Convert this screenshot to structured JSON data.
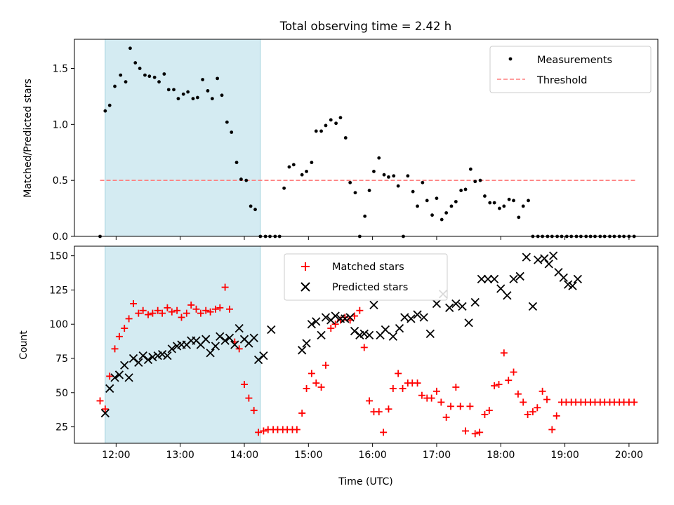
{
  "title": "Total observing time = 2.42 h",
  "colors": {
    "measurement": "#000000",
    "threshold": "#ff7f7f",
    "matched": "#ff0000",
    "predicted": "#000000",
    "shade": "#add8e6"
  },
  "chart_data": [
    {
      "type": "scatter",
      "ylabel": "Matched/Predicted stars",
      "ylim": [
        0,
        1.76
      ],
      "yticks": [
        0.0,
        0.5,
        1.0,
        1.5
      ],
      "ytick_labels": [
        "0.0",
        "0.5",
        "1.0",
        "1.5"
      ],
      "xlim": [
        11.35,
        20.45
      ],
      "xticks": [
        12,
        13,
        14,
        15,
        16,
        17,
        18,
        19,
        20
      ],
      "shaded_region": [
        11.83,
        14.25
      ],
      "threshold": {
        "y": 0.5,
        "x_range": [
          11.75,
          20.1
        ]
      },
      "legend": {
        "position": "top-right",
        "entries": [
          "Measurements",
          "Threshold"
        ]
      },
      "series": [
        {
          "name": "Measurements",
          "x": [
            11.75,
            11.83,
            11.9,
            11.98,
            12.07,
            12.15,
            12.22,
            12.3,
            12.37,
            12.45,
            12.52,
            12.6,
            12.67,
            12.75,
            12.82,
            12.9,
            12.97,
            13.05,
            13.12,
            13.2,
            13.27,
            13.35,
            13.43,
            13.5,
            13.58,
            13.65,
            13.73,
            13.8,
            13.88,
            13.95,
            14.03,
            14.1,
            14.17,
            14.25,
            14.33,
            14.4,
            14.48,
            14.55,
            14.62,
            14.7,
            14.77,
            14.9,
            14.97,
            15.05,
            15.12,
            15.2,
            15.27,
            15.35,
            15.43,
            15.5,
            15.58,
            15.65,
            15.73,
            15.8,
            15.88,
            15.95,
            16.02,
            16.1,
            16.18,
            16.25,
            16.33,
            16.4,
            16.48,
            16.55,
            16.63,
            16.7,
            16.78,
            16.85,
            16.93,
            17.0,
            17.08,
            17.15,
            17.23,
            17.3,
            17.38,
            17.45,
            17.53,
            17.6,
            17.68,
            17.75,
            17.83,
            17.9,
            17.98,
            18.05,
            18.13,
            18.2,
            18.28,
            18.35,
            18.43,
            18.5,
            18.58,
            18.65,
            18.73,
            18.8,
            18.88,
            18.95,
            19.03,
            19.1,
            19.18,
            19.25,
            19.33,
            19.4,
            19.47,
            19.55,
            19.62,
            19.7,
            19.77,
            19.85,
            19.92,
            20.0,
            20.08
          ],
          "y": [
            0.0,
            1.12,
            1.17,
            1.34,
            1.44,
            1.38,
            1.68,
            1.55,
            1.5,
            1.44,
            1.43,
            1.42,
            1.38,
            1.45,
            1.31,
            1.31,
            1.23,
            1.27,
            1.29,
            1.23,
            1.24,
            1.4,
            1.3,
            1.23,
            1.41,
            1.26,
            1.02,
            0.93,
            0.66,
            0.51,
            0.5,
            0.27,
            0.24,
            0.0,
            0.0,
            0.0,
            0.0,
            0.0,
            0.43,
            0.62,
            0.64,
            0.55,
            0.58,
            0.66,
            0.94,
            0.94,
            0.99,
            1.04,
            1.01,
            1.06,
            0.88,
            0.48,
            0.39,
            0.0,
            0.18,
            0.41,
            0.58,
            0.7,
            0.55,
            0.53,
            0.54,
            0.45,
            0.0,
            0.54,
            0.4,
            0.27,
            0.48,
            0.32,
            0.19,
            0.34,
            0.15,
            0.21,
            0.27,
            0.31,
            0.41,
            0.42,
            0.6,
            0.49,
            0.5,
            0.36,
            0.3,
            0.3,
            0.25,
            0.27,
            0.33,
            0.32,
            0.17,
            0.27,
            0.32,
            0.0,
            0.0,
            0.0,
            0.0,
            0.0,
            0.0,
            0.0,
            0.0,
            0.0,
            0.0,
            0.0,
            0.0,
            0.0,
            0.0,
            0.0,
            0.0,
            0.0,
            0.0,
            0.0,
            0.0,
            0.0,
            0.0
          ]
        },
        {
          "name": "Threshold",
          "x": [
            11.75,
            20.1
          ],
          "y": [
            0.5,
            0.5
          ]
        }
      ]
    },
    {
      "type": "scatter",
      "xlabel": "Time (UTC)",
      "ylabel": "Count",
      "ylim": [
        13,
        157
      ],
      "yticks": [
        25,
        50,
        75,
        100,
        125,
        150
      ],
      "ytick_labels": [
        "25",
        "50",
        "75",
        "100",
        "125",
        "150"
      ],
      "xlim": [
        11.35,
        20.45
      ],
      "xticks": [
        12,
        13,
        14,
        15,
        16,
        17,
        18,
        19,
        20
      ],
      "xtick_labels": [
        "12:00",
        "13:00",
        "14:00",
        "15:00",
        "16:00",
        "17:00",
        "18:00",
        "19:00",
        "20:00"
      ],
      "shaded_region": [
        11.83,
        14.25
      ],
      "legend": {
        "position": "top-center",
        "entries": [
          "Matched stars",
          "Predicted stars"
        ]
      },
      "series": [
        {
          "name": "Matched stars",
          "x": [
            11.75,
            11.83,
            11.9,
            11.98,
            12.05,
            12.13,
            12.2,
            12.27,
            12.35,
            12.42,
            12.5,
            12.57,
            12.65,
            12.72,
            12.8,
            12.87,
            12.95,
            13.02,
            13.1,
            13.17,
            13.25,
            13.32,
            13.4,
            13.47,
            13.55,
            13.62,
            13.7,
            13.77,
            13.85,
            13.92,
            14.0,
            14.07,
            14.15,
            14.22,
            14.3,
            14.37,
            14.45,
            14.52,
            14.6,
            14.67,
            14.75,
            14.82,
            14.9,
            14.97,
            15.05,
            15.12,
            15.2,
            15.27,
            15.35,
            15.42,
            15.5,
            15.57,
            15.65,
            15.72,
            15.8,
            15.87,
            15.95,
            16.02,
            16.1,
            16.17,
            16.25,
            16.32,
            16.4,
            16.47,
            16.55,
            16.62,
            16.7,
            16.77,
            16.85,
            16.92,
            17.0,
            17.07,
            17.15,
            17.22,
            17.3,
            17.37,
            17.45,
            17.52,
            17.6,
            17.67,
            17.75,
            17.82,
            17.9,
            17.97,
            18.05,
            18.12,
            18.2,
            18.27,
            18.35,
            18.42,
            18.5,
            18.57,
            18.65,
            18.72,
            18.8,
            18.87,
            18.95,
            19.02,
            19.1,
            19.17,
            19.25,
            19.32,
            19.4,
            19.47,
            19.55,
            19.62,
            19.7,
            19.77,
            19.85,
            19.92,
            20.0,
            20.08
          ],
          "y": [
            44,
            38,
            62,
            82,
            91,
            97,
            104,
            115,
            108,
            110,
            107,
            108,
            110,
            108,
            112,
            109,
            110,
            105,
            108,
            114,
            111,
            108,
            110,
            109,
            111,
            112,
            127,
            111,
            87,
            82,
            56,
            46,
            37,
            21,
            22,
            23,
            23,
            23,
            23,
            23,
            23,
            23,
            35,
            53,
            64,
            57,
            54,
            70,
            97,
            100,
            103,
            105,
            103,
            106,
            110,
            83,
            44,
            36,
            36,
            21,
            38,
            53,
            64,
            53,
            57,
            57,
            57,
            48,
            46,
            46,
            51,
            43,
            32,
            40,
            54,
            40,
            22,
            40,
            20,
            21,
            34,
            37,
            55,
            56,
            79,
            59,
            65,
            49,
            43,
            34,
            36,
            39,
            51,
            45,
            23,
            33,
            43,
            43,
            43,
            43,
            43,
            43,
            43,
            43,
            43,
            43,
            43,
            43,
            43,
            43,
            43,
            43
          ]
        },
        {
          "name": "Predicted stars",
          "x": [
            11.83,
            11.9,
            11.98,
            12.05,
            12.13,
            12.2,
            12.27,
            12.35,
            12.42,
            12.5,
            12.57,
            12.65,
            12.72,
            12.8,
            12.87,
            12.95,
            13.02,
            13.1,
            13.17,
            13.25,
            13.32,
            13.4,
            13.47,
            13.55,
            13.62,
            13.7,
            13.77,
            13.85,
            13.92,
            14.0,
            14.07,
            14.15,
            14.22,
            14.3,
            14.42,
            14.9,
            14.97,
            15.05,
            15.12,
            15.2,
            15.27,
            15.35,
            15.42,
            15.5,
            15.57,
            15.65,
            15.72,
            15.8,
            15.87,
            15.95,
            16.02,
            16.12,
            16.2,
            16.32,
            16.42,
            16.5,
            16.6,
            16.7,
            16.8,
            16.9,
            17.0,
            17.1,
            17.2,
            17.3,
            17.4,
            17.5,
            17.6,
            17.7,
            17.8,
            17.9,
            18.0,
            18.1,
            18.2,
            18.3,
            18.4,
            18.5,
            18.58,
            18.68,
            18.75,
            18.82,
            18.9,
            18.98,
            19.05,
            19.12,
            19.2
          ],
          "y": [
            35,
            53,
            61,
            63,
            70,
            61,
            75,
            72,
            77,
            74,
            76,
            77,
            78,
            77,
            82,
            84,
            85,
            85,
            88,
            88,
            85,
            89,
            79,
            84,
            91,
            88,
            90,
            85,
            97,
            89,
            86,
            90,
            74,
            77,
            96,
            81,
            86,
            100,
            102,
            92,
            105,
            103,
            106,
            104,
            104,
            105,
            95,
            92,
            93,
            92,
            114,
            92,
            96,
            91,
            97,
            105,
            104,
            107,
            105,
            93,
            115,
            122,
            112,
            115,
            113,
            101,
            116,
            133,
            133,
            133,
            126,
            121,
            133,
            135,
            149,
            113,
            147,
            148,
            144,
            150,
            138,
            134,
            129,
            128,
            133
          ]
        }
      ]
    }
  ]
}
